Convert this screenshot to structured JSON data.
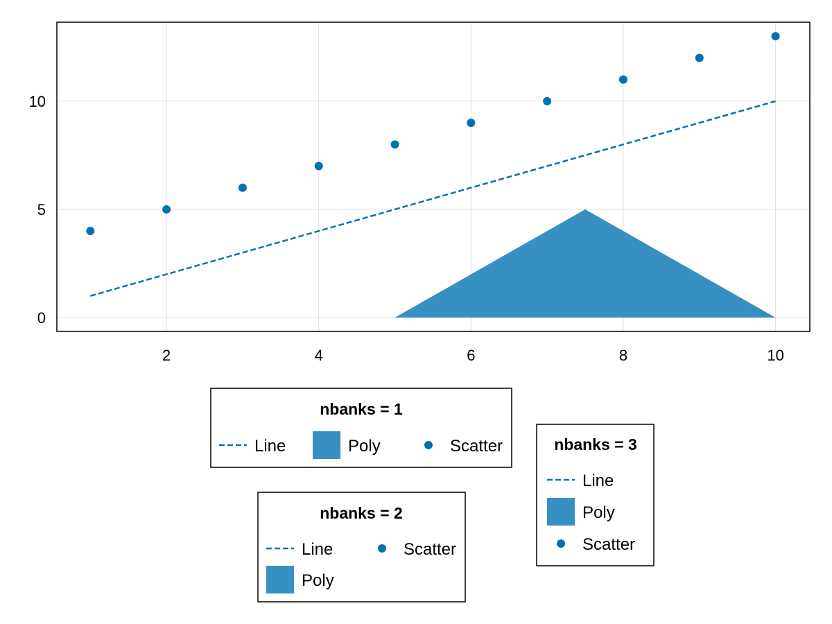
{
  "chart_data": {
    "type": "line",
    "title": "",
    "xlabel": "",
    "ylabel": "",
    "xlim": [
      0.56,
      10.45
    ],
    "ylim": [
      -0.64,
      13.65
    ],
    "xticks": [
      2,
      4,
      6,
      8,
      10
    ],
    "yticks": [
      0,
      5,
      10
    ],
    "grid": true,
    "colors": {
      "line": "#0072b2",
      "scatter": "#0072b2",
      "poly": "#388fc2"
    },
    "series": [
      {
        "name": "Line",
        "kind": "line",
        "style": "dashed",
        "x": [
          1,
          2,
          3,
          4,
          5,
          6,
          7,
          8,
          9,
          10
        ],
        "y": [
          1,
          2,
          3,
          4,
          5,
          6,
          7,
          8,
          9,
          10
        ]
      },
      {
        "name": "Scatter",
        "kind": "scatter",
        "x": [
          1,
          2,
          3,
          4,
          5,
          6,
          7,
          8,
          9,
          10
        ],
        "y": [
          4,
          5,
          6,
          7,
          8,
          9,
          10,
          11,
          12,
          13
        ]
      },
      {
        "name": "Poly",
        "kind": "polygon",
        "points": [
          [
            5,
            0
          ],
          [
            7.5,
            5
          ],
          [
            10,
            0
          ]
        ]
      }
    ],
    "legends": [
      {
        "title": "nbanks = 1",
        "entries": [
          "Line",
          "Poly",
          "Scatter"
        ]
      },
      {
        "title": "nbanks = 2",
        "entries": [
          "Line",
          "Scatter",
          "Poly"
        ]
      },
      {
        "title": "nbanks = 3",
        "entries": [
          "Line",
          "Poly",
          "Scatter"
        ]
      }
    ]
  }
}
